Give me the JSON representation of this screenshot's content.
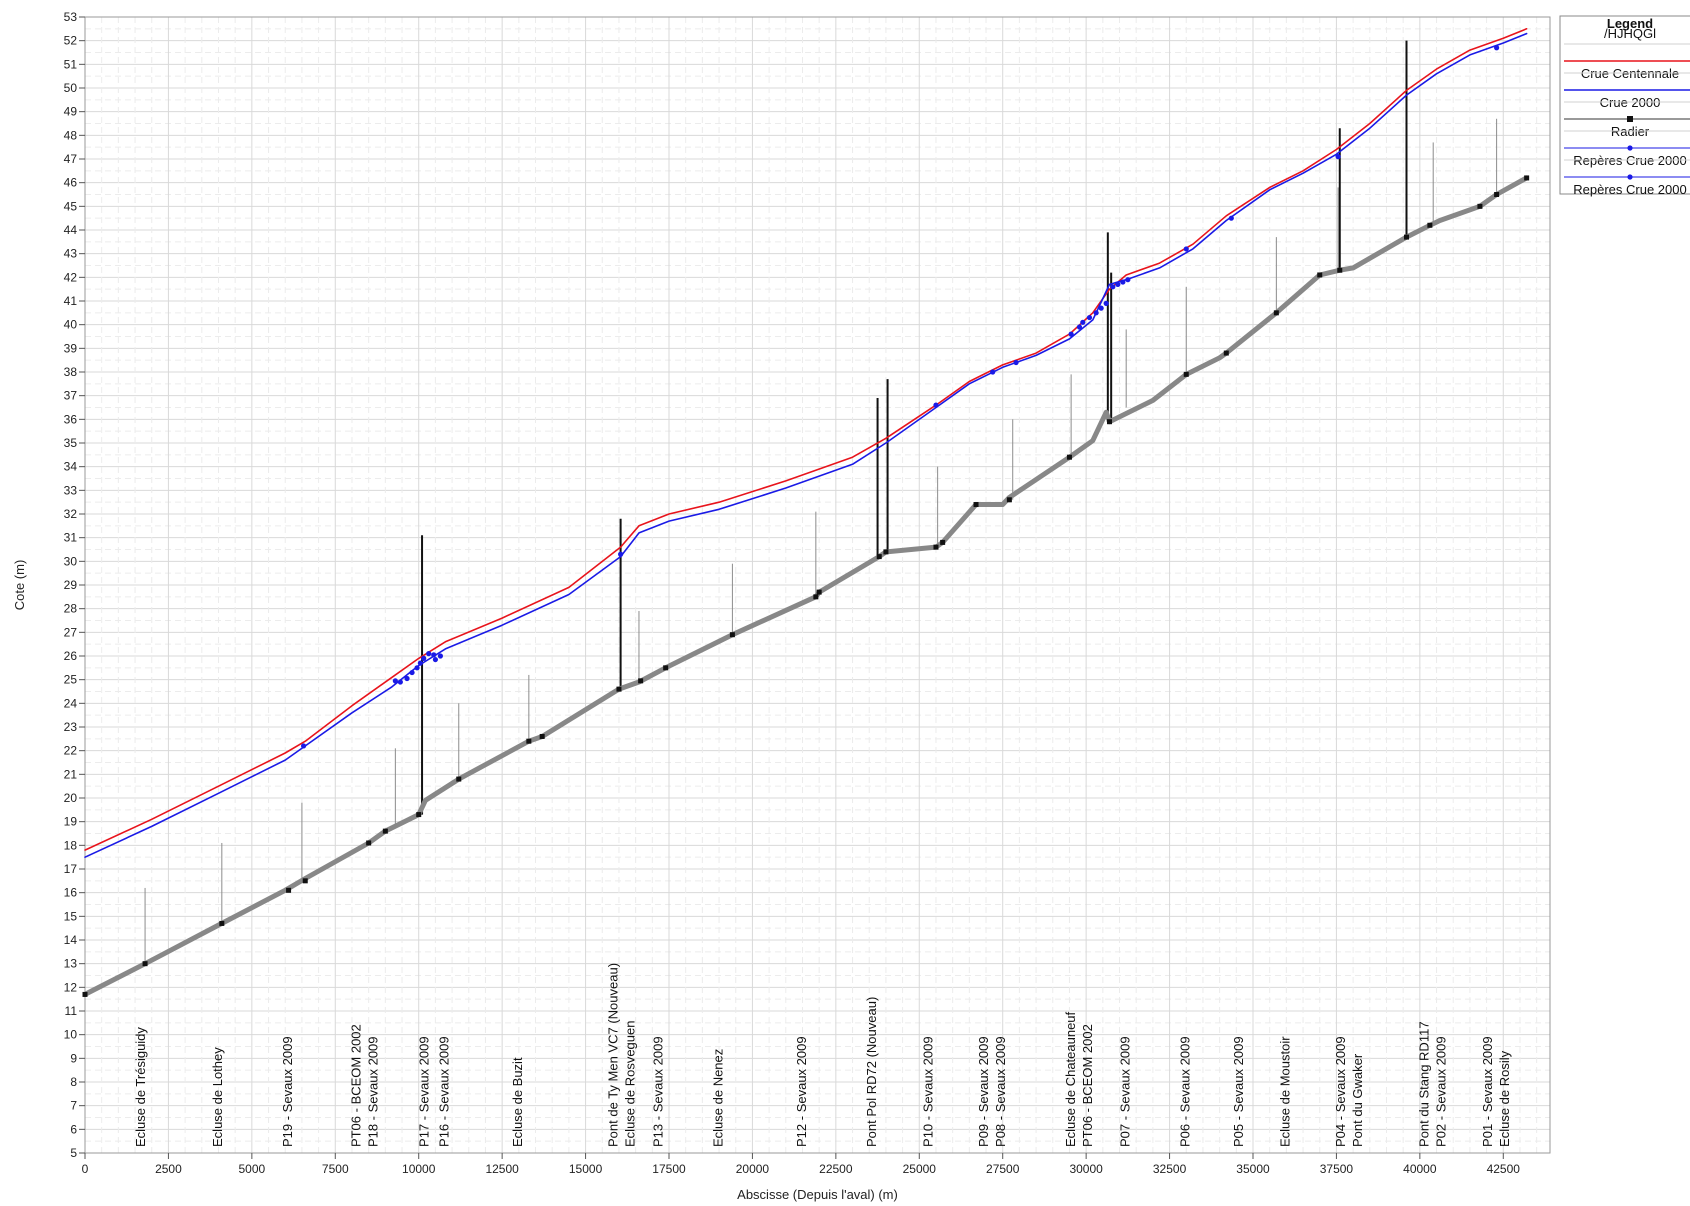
{
  "chart_data": {
    "type": "line",
    "xlabel": "Abscisse (Depuis l'aval) (m)",
    "ylabel": "Cote (m)",
    "xlim": [
      0,
      43900
    ],
    "ylim": [
      5,
      53
    ],
    "x_ticks": [
      0,
      2500,
      5000,
      7500,
      10000,
      12500,
      15000,
      17500,
      20000,
      22500,
      25000,
      27500,
      30000,
      32500,
      35000,
      37500,
      40000,
      42500
    ],
    "y_ticks": [
      5,
      6,
      7,
      8,
      9,
      10,
      11,
      12,
      13,
      14,
      15,
      16,
      17,
      18,
      19,
      20,
      21,
      22,
      23,
      24,
      25,
      26,
      27,
      28,
      29,
      30,
      31,
      32,
      33,
      34,
      35,
      36,
      37,
      38,
      39,
      40,
      41,
      42,
      43,
      44,
      45,
      46,
      47,
      48,
      49,
      50,
      51,
      52,
      53
    ],
    "grid": true,
    "legend": {
      "title": "Legend",
      "subtitle": "/HJHQGl",
      "placement": "right",
      "entries": [
        {
          "label": "Crue Centennale",
          "color": "#e8141c",
          "style": "line"
        },
        {
          "label": "Crue 2000",
          "color": "#1a1ae6",
          "style": "line"
        },
        {
          "label": "Radier",
          "color": "#333333",
          "style": "line-square"
        },
        {
          "label": "Repères Crue 2000",
          "color": "#1a1ae6",
          "style": "line-dot"
        },
        {
          "label": "Repères Crue 2000",
          "color": "#1a1ae6",
          "style": "line-dot"
        }
      ]
    },
    "series": [
      {
        "name": "Crue Centennale",
        "color": "#e8141c",
        "points": [
          [
            0,
            17.8
          ],
          [
            2000,
            19.1
          ],
          [
            4000,
            20.5
          ],
          [
            6000,
            21.9
          ],
          [
            6600,
            22.4
          ],
          [
            8000,
            23.9
          ],
          [
            9200,
            25.1
          ],
          [
            10000,
            25.9
          ],
          [
            10800,
            26.6
          ],
          [
            12500,
            27.6
          ],
          [
            14500,
            28.9
          ],
          [
            16050,
            30.6
          ],
          [
            16600,
            31.5
          ],
          [
            17500,
            32.0
          ],
          [
            19000,
            32.5
          ],
          [
            21000,
            33.4
          ],
          [
            23000,
            34.4
          ],
          [
            24000,
            35.2
          ],
          [
            25500,
            36.6
          ],
          [
            26500,
            37.6
          ],
          [
            27500,
            38.3
          ],
          [
            28500,
            38.8
          ],
          [
            29500,
            39.6
          ],
          [
            30200,
            40.5
          ],
          [
            30700,
            41.5
          ],
          [
            31200,
            42.1
          ],
          [
            32200,
            42.6
          ],
          [
            33200,
            43.4
          ],
          [
            34200,
            44.6
          ],
          [
            35500,
            45.8
          ],
          [
            36500,
            46.5
          ],
          [
            37500,
            47.4
          ],
          [
            38500,
            48.5
          ],
          [
            39600,
            49.9
          ],
          [
            40500,
            50.8
          ],
          [
            41500,
            51.6
          ],
          [
            42500,
            52.1
          ],
          [
            43200,
            52.5
          ]
        ]
      },
      {
        "name": "Crue 2000",
        "color": "#1a1ae6",
        "points": [
          [
            0,
            17.5
          ],
          [
            2000,
            18.8
          ],
          [
            4000,
            20.2
          ],
          [
            6000,
            21.6
          ],
          [
            6600,
            22.2
          ],
          [
            8000,
            23.6
          ],
          [
            9200,
            24.7
          ],
          [
            10000,
            25.6
          ],
          [
            10800,
            26.3
          ],
          [
            12500,
            27.3
          ],
          [
            14500,
            28.6
          ],
          [
            16050,
            30.2
          ],
          [
            16600,
            31.2
          ],
          [
            17500,
            31.7
          ],
          [
            19000,
            32.2
          ],
          [
            21000,
            33.1
          ],
          [
            23000,
            34.1
          ],
          [
            24000,
            35.0
          ],
          [
            25500,
            36.5
          ],
          [
            26500,
            37.5
          ],
          [
            27500,
            38.2
          ],
          [
            28500,
            38.7
          ],
          [
            29500,
            39.4
          ],
          [
            30200,
            40.2
          ],
          [
            30700,
            41.7
          ],
          [
            31200,
            41.9
          ],
          [
            32200,
            42.4
          ],
          [
            33200,
            43.2
          ],
          [
            34200,
            44.4
          ],
          [
            35500,
            45.7
          ],
          [
            36500,
            46.4
          ],
          [
            37500,
            47.2
          ],
          [
            38500,
            48.3
          ],
          [
            39600,
            49.7
          ],
          [
            40500,
            50.6
          ],
          [
            41500,
            51.4
          ],
          [
            42500,
            51.9
          ],
          [
            43200,
            52.3
          ]
        ]
      },
      {
        "name": "Radier",
        "color": "#888888",
        "points": [
          [
            0,
            11.7
          ],
          [
            1800,
            13.0
          ],
          [
            4100,
            14.7
          ],
          [
            6000,
            16.1
          ],
          [
            6600,
            16.6
          ],
          [
            8500,
            18.1
          ],
          [
            9000,
            18.6
          ],
          [
            10000,
            19.3
          ],
          [
            10200,
            19.9
          ],
          [
            11200,
            20.8
          ],
          [
            13300,
            22.4
          ],
          [
            13700,
            22.6
          ],
          [
            16000,
            24.6
          ],
          [
            16600,
            24.9
          ],
          [
            17400,
            25.5
          ],
          [
            19400,
            26.9
          ],
          [
            21900,
            28.5
          ],
          [
            22000,
            28.7
          ],
          [
            23800,
            30.2
          ],
          [
            24000,
            30.4
          ],
          [
            25500,
            30.6
          ],
          [
            25700,
            30.8
          ],
          [
            26700,
            32.4
          ],
          [
            27500,
            32.4
          ],
          [
            27700,
            32.7
          ],
          [
            29500,
            34.4
          ],
          [
            30200,
            35.1
          ],
          [
            30600,
            36.3
          ],
          [
            30700,
            35.9
          ],
          [
            32000,
            36.8
          ],
          [
            33000,
            37.9
          ],
          [
            34000,
            38.6
          ],
          [
            34200,
            38.8
          ],
          [
            35700,
            40.5
          ],
          [
            37000,
            42.1
          ],
          [
            37600,
            42.3
          ],
          [
            38000,
            42.4
          ],
          [
            39600,
            43.7
          ],
          [
            40300,
            44.2
          ],
          [
            40600,
            44.4
          ],
          [
            41800,
            45.0
          ],
          [
            42300,
            45.5
          ],
          [
            43200,
            46.2
          ]
        ]
      }
    ],
    "reperes": [
      [
        6550,
        22.2
      ],
      [
        9300,
        24.95
      ],
      [
        9450,
        24.9
      ],
      [
        9650,
        25.05
      ],
      [
        9800,
        25.3
      ],
      [
        9950,
        25.5
      ],
      [
        10050,
        25.7
      ],
      [
        10150,
        25.9
      ],
      [
        10300,
        26.1
      ],
      [
        10450,
        26.05
      ],
      [
        10500,
        25.85
      ],
      [
        10650,
        26.0
      ],
      [
        16050,
        30.3
      ],
      [
        25500,
        36.6
      ],
      [
        27200,
        38.0
      ],
      [
        27900,
        38.4
      ],
      [
        29550,
        39.6
      ],
      [
        29800,
        39.9
      ],
      [
        29900,
        40.1
      ],
      [
        30100,
        40.3
      ],
      [
        30300,
        40.5
      ],
      [
        30450,
        40.7
      ],
      [
        30600,
        40.9
      ],
      [
        30800,
        41.6
      ],
      [
        30950,
        41.7
      ],
      [
        31100,
        41.8
      ],
      [
        31250,
        41.9
      ],
      [
        33000,
        43.2
      ],
      [
        34350,
        44.5
      ],
      [
        37550,
        47.1
      ],
      [
        42300,
        51.7
      ]
    ],
    "radier_markers": [
      [
        0,
        11.7
      ],
      [
        1800,
        13.0
      ],
      [
        4100,
        14.7
      ],
      [
        6100,
        16.1
      ],
      [
        6600,
        16.5
      ],
      [
        8500,
        18.1
      ],
      [
        9000,
        18.6
      ],
      [
        10000,
        19.3
      ],
      [
        11200,
        20.8
      ],
      [
        13300,
        22.4
      ],
      [
        13700,
        22.6
      ],
      [
        16000,
        24.6
      ],
      [
        16650,
        24.95
      ],
      [
        17400,
        25.5
      ],
      [
        19400,
        26.9
      ],
      [
        21900,
        28.5
      ],
      [
        22000,
        28.7
      ],
      [
        23800,
        30.2
      ],
      [
        24000,
        30.4
      ],
      [
        25500,
        30.6
      ],
      [
        25700,
        30.8
      ],
      [
        26700,
        32.4
      ],
      [
        27700,
        32.6
      ],
      [
        29500,
        34.4
      ],
      [
        30700,
        35.9
      ],
      [
        33000,
        37.9
      ],
      [
        34200,
        38.8
      ],
      [
        35700,
        40.5
      ],
      [
        37000,
        42.1
      ],
      [
        37600,
        42.3
      ],
      [
        39600,
        43.7
      ],
      [
        40300,
        44.2
      ],
      [
        41800,
        45.0
      ],
      [
        42300,
        45.5
      ],
      [
        43200,
        46.2
      ]
    ],
    "structures_thick": [
      [
        10100,
        19.3,
        31.1
      ],
      [
        16050,
        24.5,
        31.8
      ],
      [
        23750,
        30.2,
        36.9
      ],
      [
        24050,
        30.4,
        37.7
      ],
      [
        30650,
        35.9,
        43.9
      ],
      [
        30750,
        35.9,
        42.2
      ],
      [
        37600,
        42.3,
        48.3
      ],
      [
        39600,
        43.8,
        52.0
      ]
    ],
    "structures_thin": [
      [
        1800,
        13.0,
        16.2
      ],
      [
        4100,
        14.7,
        18.1
      ],
      [
        6500,
        16.6,
        19.8
      ],
      [
        9300,
        18.8,
        22.1
      ],
      [
        11200,
        20.9,
        24.0
      ],
      [
        13300,
        22.4,
        25.2
      ],
      [
        16600,
        24.9,
        27.9
      ],
      [
        19400,
        26.9,
        29.9
      ],
      [
        21900,
        28.6,
        32.1
      ],
      [
        25550,
        30.7,
        34.0
      ],
      [
        27800,
        32.6,
        36.0
      ],
      [
        29550,
        34.4,
        37.9
      ],
      [
        31200,
        36.5,
        39.8
      ],
      [
        33000,
        38.0,
        41.6
      ],
      [
        35700,
        40.6,
        43.7
      ],
      [
        37550,
        42.3,
        45.8
      ],
      [
        40400,
        44.3,
        47.7
      ],
      [
        42300,
        45.5,
        48.7
      ]
    ],
    "stations": [
      {
        "x": 1800,
        "lines": [
          "Ecluse de Trésiguidy"
        ]
      },
      {
        "x": 4100,
        "lines": [
          "Ecluse de Lothey"
        ]
      },
      {
        "x": 6200,
        "lines": [
          "P19 - Sevaux 2009"
        ]
      },
      {
        "x": 8500,
        "lines": [
          "PT06 - BCEOM 2002",
          "P18 - Sevaux 2009"
        ]
      },
      {
        "x": 10300,
        "lines": [
          "P17 - Sevaux 2009"
        ]
      },
      {
        "x": 10900,
        "lines": [
          "P16 - Sevaux 2009"
        ]
      },
      {
        "x": 13100,
        "lines": [
          "Ecluse de Buzit"
        ]
      },
      {
        "x": 16200,
        "lines": [
          "Pont de Ty Men VC7 (Nouveau)",
          "Ecluse de Rosveguen"
        ]
      },
      {
        "x": 17300,
        "lines": [
          "P13 - Sevaux 2009"
        ]
      },
      {
        "x": 19100,
        "lines": [
          "Ecluse de Nenez"
        ]
      },
      {
        "x": 21600,
        "lines": [
          "P12 - Sevaux 2009"
        ]
      },
      {
        "x": 23700,
        "lines": [
          "Pont Pol RD72 (Nouveau)"
        ]
      },
      {
        "x": 25400,
        "lines": [
          "P10 - Sevaux 2009"
        ]
      },
      {
        "x": 27300,
        "lines": [
          "P09 - Sevaux 2009",
          "P08 - Sevaux 2009"
        ]
      },
      {
        "x": 29900,
        "lines": [
          "Ecluse de Chateauneuf",
          "PT06 - BCEOM 2002"
        ]
      },
      {
        "x": 31300,
        "lines": [
          "P07 - Sevaux 2009"
        ]
      },
      {
        "x": 33100,
        "lines": [
          "P06 - Sevaux 2009"
        ]
      },
      {
        "x": 34700,
        "lines": [
          "P05 - Sevaux 2009"
        ]
      },
      {
        "x": 36100,
        "lines": [
          "Ecluse de Moustoir"
        ]
      },
      {
        "x": 38000,
        "lines": [
          "P04 - Sevaux 2009",
          "Pont du Gwaker"
        ]
      },
      {
        "x": 40500,
        "lines": [
          "Pont du Stang RD117",
          "P02 - Sevaux 2009"
        ]
      },
      {
        "x": 42400,
        "lines": [
          "P01 - Sevaux 2009",
          "Ecluse de Rosily"
        ]
      }
    ]
  }
}
